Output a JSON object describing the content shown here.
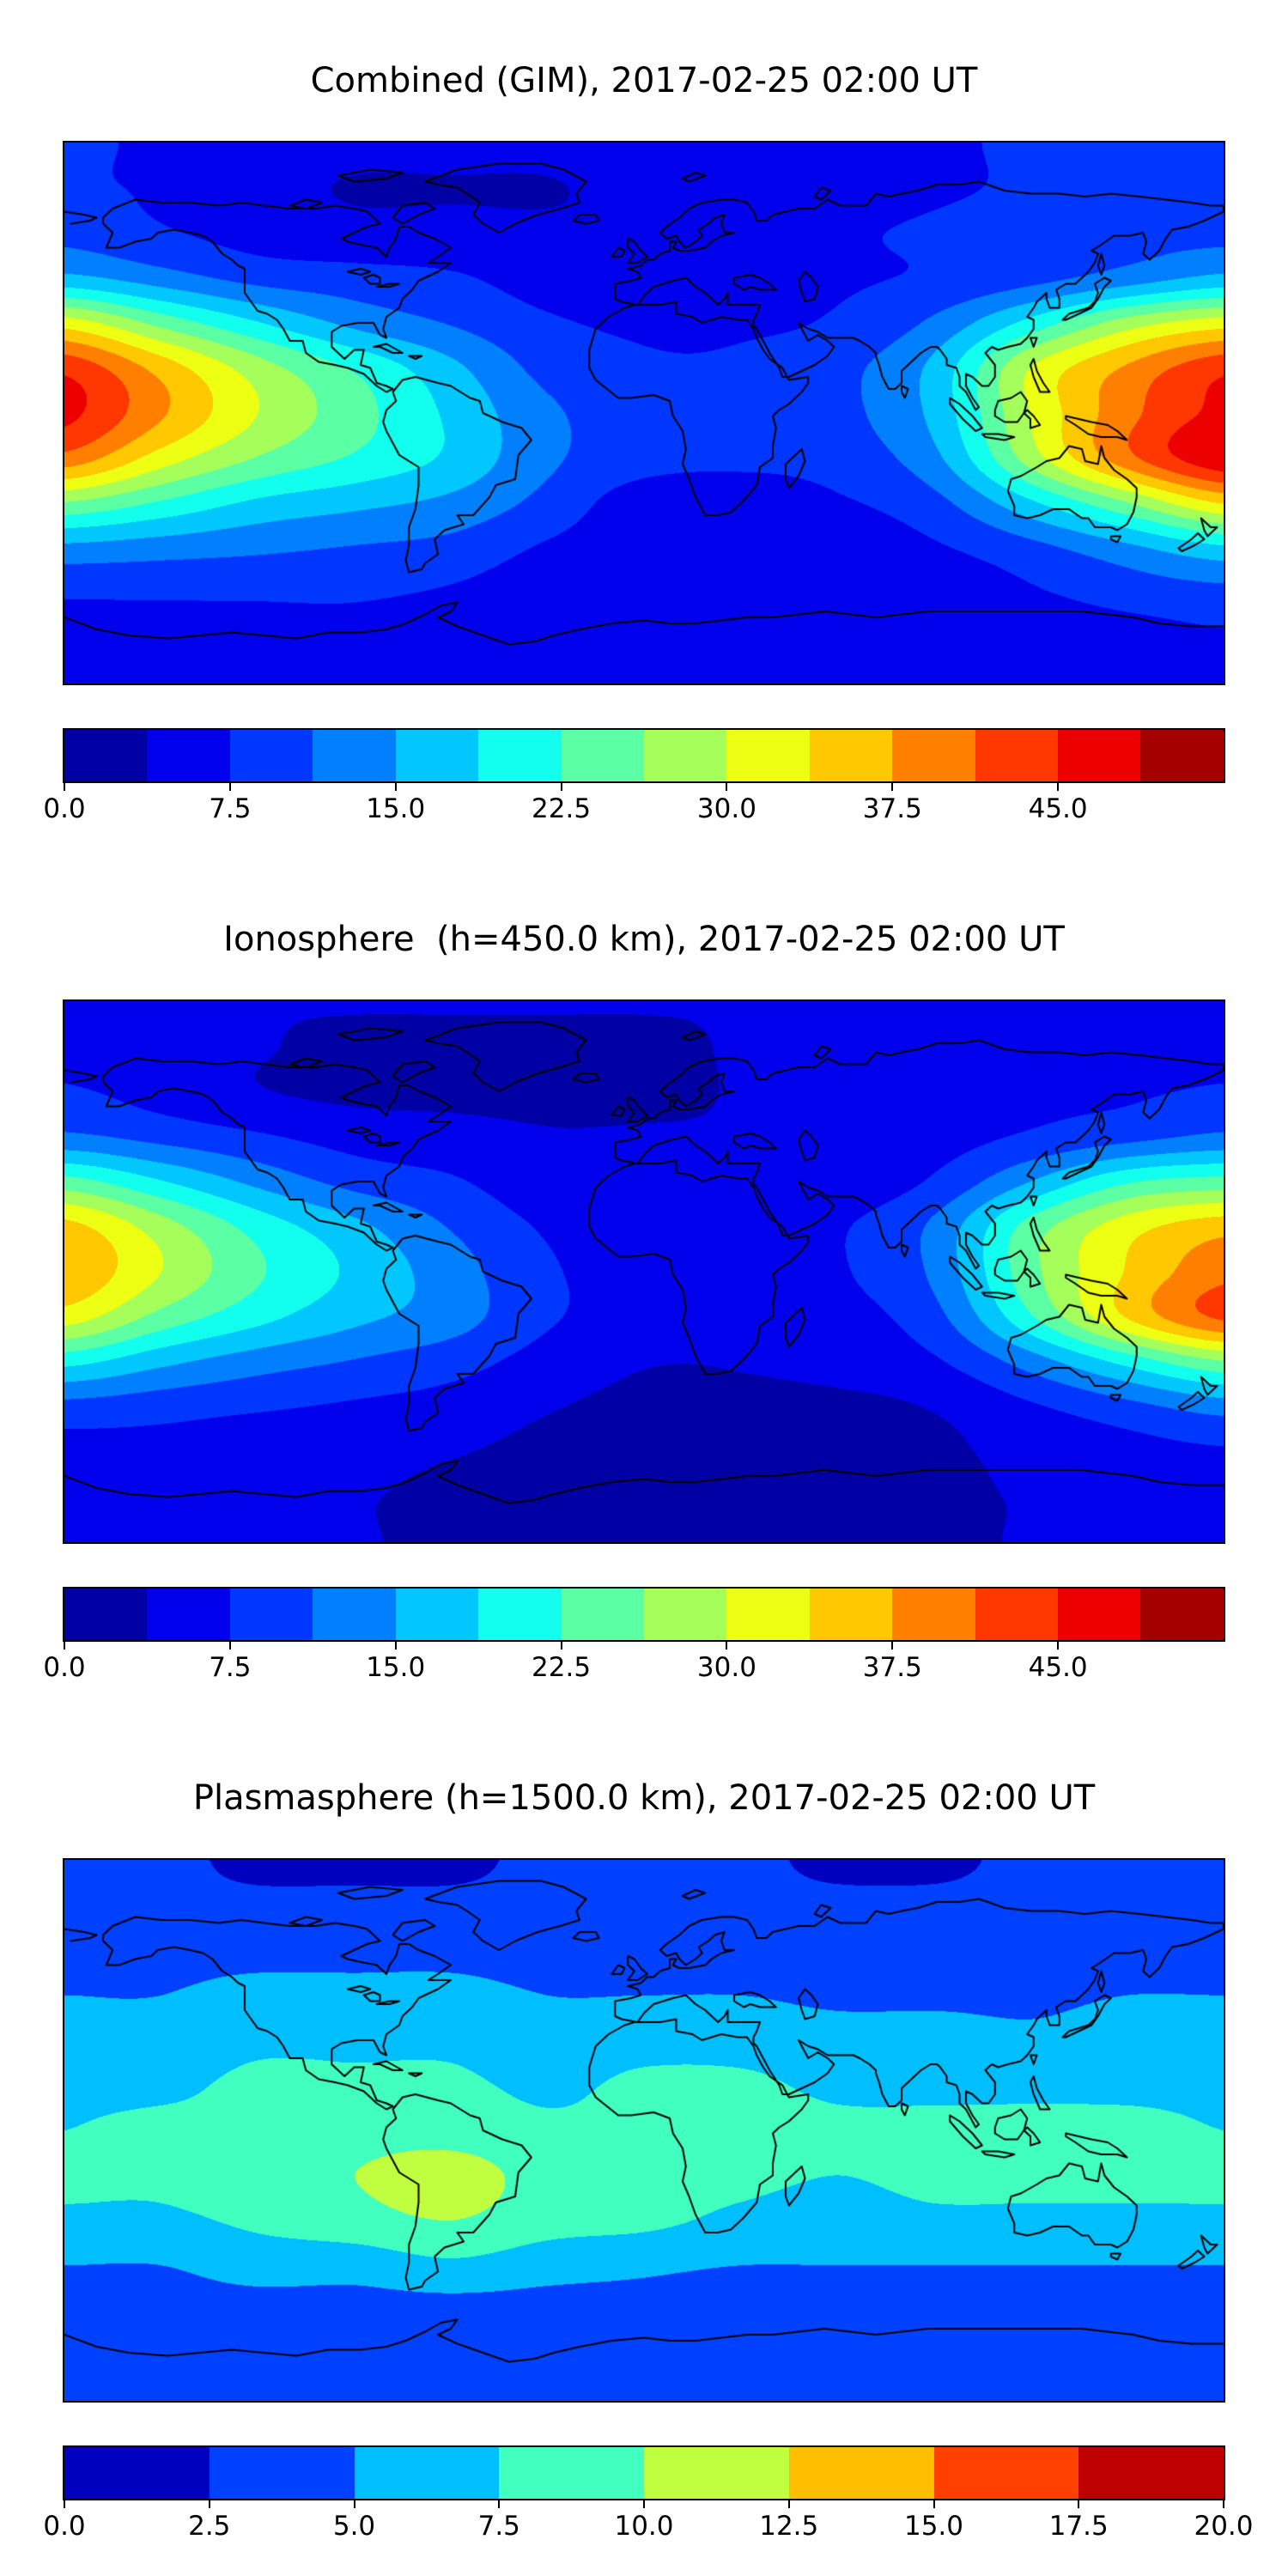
{
  "figure": {
    "background": "#ffffff",
    "panel_count": 3,
    "coastline_color": "#000000"
  },
  "chart_data": [
    {
      "type": "heatmap",
      "subtype": "filled-contour-world-map",
      "title": "Combined (GIM), 2017-02-25 02:00 UT",
      "colormap": "jet",
      "lon_range": [
        -180,
        180
      ],
      "lat_range": [
        -90,
        90
      ],
      "levels": {
        "min": 0,
        "max": 52.5,
        "step": 3.75,
        "bands": 14
      },
      "colorbar": {
        "orientation": "horizontal",
        "tick_labels": [
          "0.0",
          "7.5",
          "15.0",
          "22.5",
          "30.0",
          "37.5",
          "45.0"
        ],
        "tick_values": [
          0,
          7.5,
          15,
          22.5,
          30,
          37.5,
          45
        ]
      },
      "lons": [
        -180,
        -150,
        -120,
        -90,
        -60,
        -30,
        0,
        30,
        60,
        90,
        120,
        150,
        180
      ],
      "lats": [
        90,
        75,
        60,
        45,
        30,
        15,
        0,
        -15,
        -30,
        -45,
        -60,
        -75,
        -90
      ],
      "values_tecu": [
        [
          8,
          7,
          6,
          5,
          5,
          5,
          6,
          6,
          7,
          7,
          8,
          8,
          8
        ],
        [
          8,
          7,
          5,
          3.5,
          3.5,
          3.5,
          5,
          5,
          6,
          7,
          8,
          9,
          8
        ],
        [
          10,
          8,
          6,
          5,
          5,
          4.5,
          4.5,
          6,
          7,
          8,
          9,
          10,
          10
        ],
        [
          16,
          13,
          10,
          9,
          8,
          6,
          6,
          6,
          7,
          8,
          10,
          13,
          16
        ],
        [
          32,
          25,
          19,
          14,
          11,
          8,
          7,
          7,
          8,
          12,
          20,
          28,
          32
        ],
        [
          44,
          36,
          28,
          22,
          16,
          10,
          8,
          8,
          10,
          16,
          30,
          38,
          44
        ],
        [
          46,
          38,
          30,
          24,
          18,
          12,
          9,
          8,
          10,
          16,
          30,
          40,
          46
        ],
        [
          40,
          32,
          26,
          22,
          18,
          12,
          9,
          8,
          9,
          14,
          28,
          40,
          48
        ],
        [
          26,
          22,
          18,
          16,
          14,
          10,
          5.5,
          6,
          7,
          10,
          18,
          26,
          34
        ],
        [
          14,
          13,
          12,
          11,
          10,
          7,
          5,
          5,
          5,
          7,
          10,
          14,
          18
        ],
        [
          8,
          8,
          8,
          8,
          7,
          5,
          4,
          4,
          4,
          5,
          7,
          9,
          10
        ],
        [
          6,
          6,
          6,
          6,
          5,
          4,
          4,
          4,
          4,
          4,
          5,
          6,
          7
        ],
        [
          5,
          5,
          5,
          5,
          5,
          4,
          4,
          4,
          4,
          4,
          5,
          5,
          5
        ]
      ]
    },
    {
      "type": "heatmap",
      "subtype": "filled-contour-world-map",
      "title": "Ionosphere  (h=450.0 km), 2017-02-25 02:00 UT",
      "colormap": "jet",
      "lon_range": [
        -180,
        180
      ],
      "lat_range": [
        -90,
        90
      ],
      "levels": {
        "min": 0,
        "max": 52.5,
        "step": 3.75,
        "bands": 14
      },
      "colorbar": {
        "orientation": "horizontal",
        "tick_labels": [
          "0.0",
          "7.5",
          "15.0",
          "22.5",
          "30.0",
          "37.5",
          "45.0"
        ],
        "tick_values": [
          0,
          7.5,
          15,
          22.5,
          30,
          37.5,
          45
        ]
      },
      "lons": [
        -180,
        -150,
        -120,
        -90,
        -60,
        -30,
        0,
        30,
        60,
        90,
        120,
        150,
        180
      ],
      "lats": [
        90,
        75,
        60,
        45,
        30,
        15,
        0,
        -15,
        -30,
        -45,
        -60,
        -75,
        -90
      ],
      "values_tecu": [
        [
          5,
          5,
          4,
          4,
          4,
          4,
          4,
          4,
          5,
          5,
          5,
          5,
          5
        ],
        [
          6,
          5,
          4,
          3,
          3,
          3,
          3,
          4,
          4,
          5,
          6,
          6,
          6
        ],
        [
          8,
          6,
          4,
          3,
          3,
          3,
          3,
          4,
          5,
          6,
          7,
          7,
          8
        ],
        [
          12,
          10,
          8,
          6,
          5,
          4,
          4,
          4,
          5,
          6,
          8,
          10,
          12
        ],
        [
          24,
          19,
          14,
          10,
          8,
          5,
          4,
          4,
          5,
          8,
          15,
          22,
          24
        ],
        [
          35,
          28,
          21,
          16,
          11,
          7,
          5,
          5,
          7,
          12,
          24,
          32,
          36
        ],
        [
          37,
          30,
          23,
          18,
          13,
          8,
          6,
          5,
          7,
          12,
          25,
          34,
          40
        ],
        [
          32,
          25,
          20,
          16,
          13,
          8,
          6,
          5,
          6,
          10,
          22,
          34,
          42
        ],
        [
          20,
          16,
          13,
          11,
          9,
          6,
          4,
          4,
          5,
          7,
          13,
          20,
          26
        ],
        [
          10,
          9,
          8,
          7,
          6,
          4,
          3,
          3,
          3,
          4,
          7,
          10,
          13
        ],
        [
          6,
          6,
          5,
          5,
          4,
          3,
          3,
          3,
          3,
          3,
          5,
          6,
          7
        ],
        [
          4,
          4,
          4,
          4,
          3,
          3,
          3,
          3,
          3,
          3,
          4,
          4,
          5
        ],
        [
          4,
          4,
          4,
          4,
          3,
          3,
          3,
          3,
          3,
          3,
          4,
          4,
          4
        ]
      ]
    },
    {
      "type": "heatmap",
      "subtype": "filled-contour-world-map",
      "title": "Plasmasphere (h=1500.0 km), 2017-02-25 02:00 UT",
      "colormap": "jet",
      "lon_range": [
        -180,
        180
      ],
      "lat_range": [
        -90,
        90
      ],
      "levels": {
        "min": 0,
        "max": 20,
        "step": 2.5,
        "bands": 8
      },
      "colorbar": {
        "orientation": "horizontal",
        "tick_labels": [
          "0.0",
          "2.5",
          "5.0",
          "7.5",
          "10.0",
          "12.5",
          "15.0",
          "17.5",
          "20.0"
        ],
        "tick_values": [
          0,
          2.5,
          5,
          7.5,
          10,
          12.5,
          15,
          17.5,
          20
        ]
      },
      "lons": [
        -180,
        -150,
        -120,
        -90,
        -60,
        -30,
        0,
        30,
        60,
        90,
        120,
        150,
        180
      ],
      "lats": [
        90,
        75,
        60,
        45,
        30,
        15,
        0,
        -15,
        -30,
        -45,
        -60,
        -75,
        -90
      ],
      "values_tecu": [
        [
          3,
          3,
          2,
          2,
          2,
          3,
          3,
          3,
          2,
          2,
          3,
          3,
          3
        ],
        [
          3,
          3,
          3,
          3,
          3,
          3,
          3,
          3,
          3,
          3,
          3,
          3,
          3
        ],
        [
          4,
          4,
          4,
          4,
          4,
          3.5,
          3.5,
          3.5,
          3.5,
          3.5,
          3.5,
          4,
          4
        ],
        [
          5,
          5,
          6,
          6,
          6,
          5,
          5,
          5,
          4.5,
          4.5,
          4.5,
          5,
          5
        ],
        [
          6,
          6,
          7,
          7,
          7,
          6,
          6.5,
          6.5,
          6,
          6,
          5.5,
          6,
          6
        ],
        [
          7,
          7,
          8,
          8,
          8,
          7,
          8,
          8,
          7,
          7,
          7,
          7,
          7
        ],
        [
          7.5,
          8,
          8,
          9,
          9,
          8,
          8,
          8.5,
          8,
          8,
          8,
          8,
          7.5
        ],
        [
          8,
          8,
          9,
          10,
          11,
          9,
          8,
          8,
          7.5,
          8,
          8,
          8,
          8
        ],
        [
          7,
          7,
          8,
          9,
          10,
          8.5,
          8,
          7,
          6.5,
          7,
          7,
          7,
          7
        ],
        [
          5,
          5,
          6,
          6,
          7,
          6,
          5.5,
          5,
          5,
          5,
          5,
          5,
          5
        ],
        [
          4,
          4,
          4,
          4,
          4,
          4,
          4,
          3.5,
          3.5,
          3.5,
          3.5,
          4,
          4
        ],
        [
          3,
          3,
          3,
          3,
          3,
          3,
          3,
          3,
          3,
          3,
          3,
          3,
          3
        ],
        [
          3,
          3,
          3,
          3,
          3,
          3,
          3,
          3,
          3,
          3,
          3,
          3,
          3
        ]
      ]
    }
  ]
}
